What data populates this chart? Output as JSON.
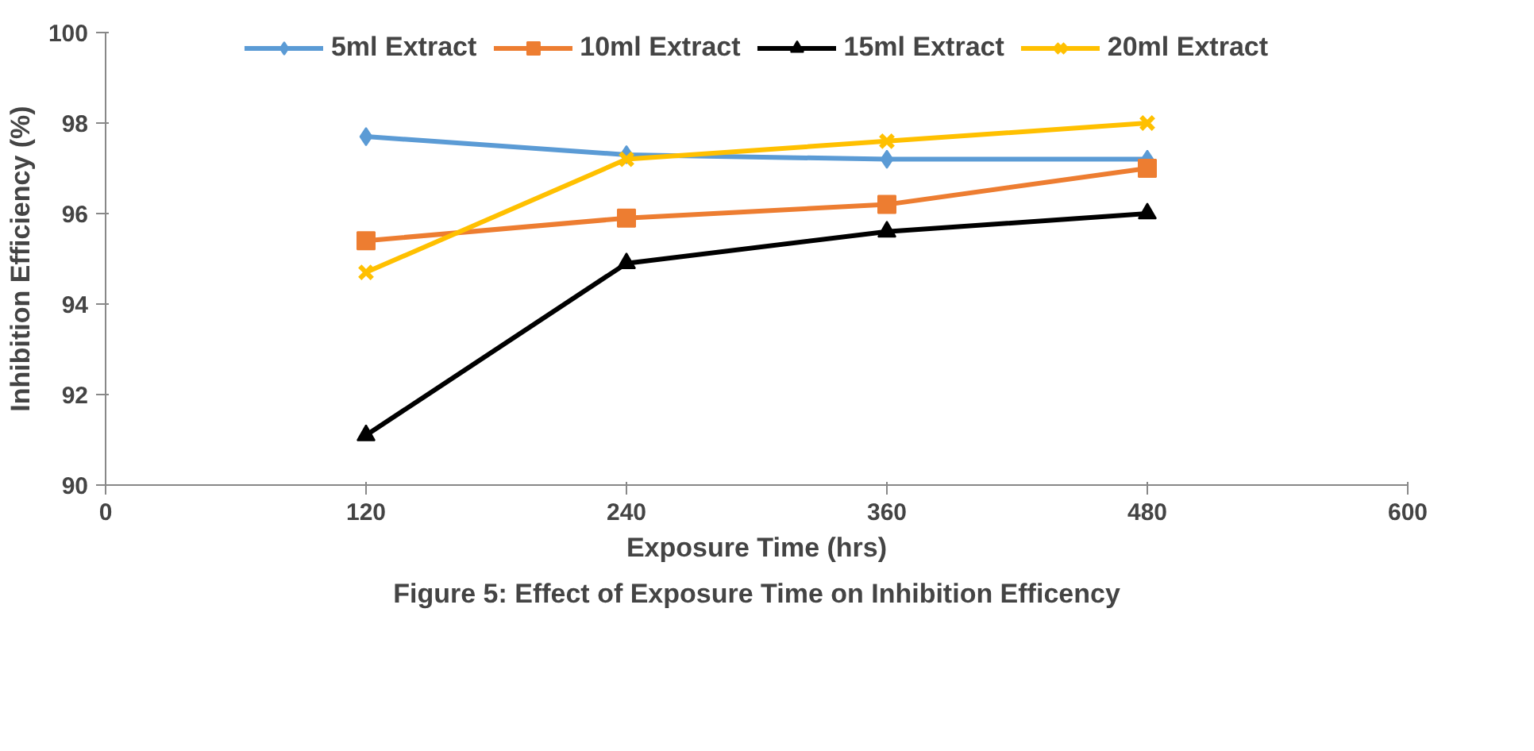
{
  "chart_data": {
    "type": "line",
    "title": "Figure 5: Effect of Exposure Time on Inhibition Efficency",
    "xlabel": "Exposure Time (hrs)",
    "ylabel": "Inhibition Efficiency (%)",
    "x": [
      120,
      240,
      360,
      480
    ],
    "series": [
      {
        "name": "5ml Extract",
        "color": "#5b9bd5",
        "marker": "diamond",
        "values": [
          97.7,
          97.3,
          97.2,
          97.2
        ]
      },
      {
        "name": "10ml Extract",
        "color": "#ed7d31",
        "marker": "square",
        "values": [
          95.4,
          95.9,
          96.2,
          97.0
        ]
      },
      {
        "name": "15ml Extract",
        "color": "#000000",
        "marker": "triangle",
        "values": [
          91.1,
          94.9,
          95.6,
          96.0
        ]
      },
      {
        "name": "20ml Extract",
        "color": "#ffc000",
        "marker": "cross",
        "values": [
          94.7,
          97.2,
          97.6,
          98.0
        ]
      }
    ],
    "xlim": [
      0,
      600
    ],
    "xticks": [
      0,
      120,
      240,
      360,
      480,
      600
    ],
    "ylim": [
      90,
      100
    ],
    "yticks": [
      90,
      92,
      94,
      96,
      98,
      100
    ],
    "grid": false,
    "legend": "top"
  }
}
